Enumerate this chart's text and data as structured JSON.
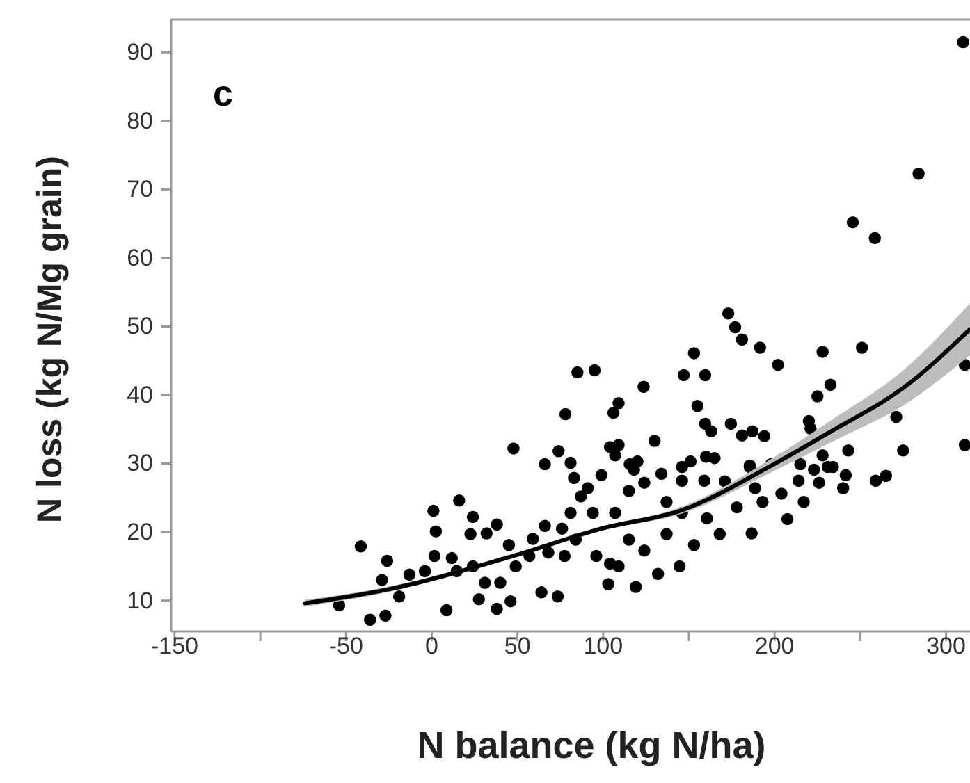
{
  "chart_data": {
    "type": "scatter",
    "xlabel": "N balance (kg N/ha)",
    "ylabel": "N loss (kg N/Mg grain)",
    "annotations": [
      "c"
    ],
    "xlim": [
      -152,
      314
    ],
    "ylim": [
      5.5,
      94.8
    ],
    "xticks": [
      -150,
      {
        "value": -100,
        "label": null
      },
      -50,
      0,
      50,
      100,
      {
        "value": 150,
        "label": null
      },
      200,
      {
        "value": 250,
        "label": null
      },
      300
    ],
    "yticks": [
      10,
      20,
      30,
      40,
      50,
      60,
      70,
      80,
      90
    ],
    "grid": false,
    "series": [
      {
        "marker": "circle",
        "color": "#000000",
        "x": [
          310,
          284,
          245.6,
          258.5,
          173,
          177,
          181,
          153,
          191.5,
          228,
          251,
          202,
          85,
          95,
          147,
          159.5,
          123.6,
          232.6,
          225,
          311,
          109,
          106,
          78,
          155,
          271,
          174.5,
          159.5,
          163,
          181,
          187,
          194,
          220,
          221,
          130,
          47.7,
          74,
          104,
          109,
          107,
          243,
          275,
          311,
          66,
          81,
          160,
          165,
          151,
          146,
          115.5,
          185.5,
          215,
          228,
          234,
          -41.4,
          -54,
          -36,
          -27,
          -26,
          -29,
          -19,
          -13,
          -4,
          8.6,
          1,
          2.4,
          16,
          1.6,
          11.7,
          24,
          22.6,
          32,
          38,
          45,
          14.6,
          24,
          31,
          40,
          27.5,
          38,
          46,
          49,
          57,
          59,
          66,
          76,
          64,
          73.5,
          68,
          77.5,
          84,
          81,
          87,
          83,
          91,
          99,
          94,
          96,
          104,
          109,
          103,
          119,
          107,
          115,
          118,
          115,
          124,
          132,
          124,
          134,
          137,
          146,
          144.6,
          153,
          137,
          146,
          159,
          160.5,
          168,
          171,
          178,
          185.5,
          188.6,
          186.6,
          193,
          204,
          207.5,
          214,
          217,
          223,
          226,
          231,
          241.5,
          240,
          259,
          265,
          198,
          120
        ],
        "values": [
          91.5,
          72.3,
          65.2,
          62.9,
          51.9,
          49.9,
          48.1,
          46.1,
          46.9,
          46.3,
          46.9,
          44.4,
          43.3,
          43.6,
          42.9,
          42.9,
          41.2,
          41.5,
          39.8,
          44.4,
          38.8,
          37.4,
          37.2,
          38.4,
          36.8,
          35.8,
          35.8,
          34.7,
          34.1,
          34.7,
          34,
          36.2,
          35.1,
          33.3,
          32.2,
          31.8,
          32.4,
          32.7,
          31.2,
          31.9,
          31.9,
          32.7,
          29.9,
          30.1,
          31,
          30.8,
          30.3,
          29.5,
          29.9,
          29.7,
          29.9,
          31.2,
          29.5,
          17.9,
          9.3,
          7.2,
          7.8,
          15.8,
          13,
          10.6,
          13.8,
          14.3,
          8.6,
          23.1,
          20.1,
          24.6,
          16.5,
          16.2,
          22.2,
          19.7,
          19.8,
          21.1,
          18.1,
          14.3,
          15,
          12.6,
          12.6,
          10.2,
          8.8,
          9.9,
          15,
          16.5,
          19,
          20.9,
          20.5,
          11.2,
          10.6,
          17,
          16.5,
          18.9,
          22.8,
          25.2,
          27.9,
          26.4,
          28.3,
          22.8,
          16.5,
          15.4,
          15,
          12.4,
          12,
          22.8,
          26,
          29.1,
          18.9,
          17.3,
          13.9,
          27.2,
          28.5,
          24.4,
          22.8,
          15,
          18.1,
          19.7,
          27.5,
          27.5,
          22,
          19.7,
          27.4,
          23.6,
          29.5,
          26.4,
          19.8,
          24.4,
          25.6,
          21.9,
          27.5,
          24.4,
          29.1,
          27.2,
          29.5,
          28.3,
          26.4,
          27.5,
          28.2,
          29.9,
          30.3
        ]
      },
      {
        "type": "line",
        "color": "#000000",
        "x": [
          -74,
          -26,
          50,
          99,
          146,
          199.5,
          233,
          276,
          314
        ],
        "values": [
          9.6,
          11.6,
          16.7,
          20.5,
          23.2,
          29.9,
          34.7,
          41.2,
          49.6
        ],
        "lower": [
          9.1,
          11.2,
          16.4,
          20.2,
          22.7,
          28.9,
          33.1,
          38.6,
          45.8
        ],
        "upper": [
          10.1,
          12,
          17,
          20.8,
          23.7,
          30.9,
          36.3,
          43.8,
          53.4
        ]
      }
    ]
  }
}
